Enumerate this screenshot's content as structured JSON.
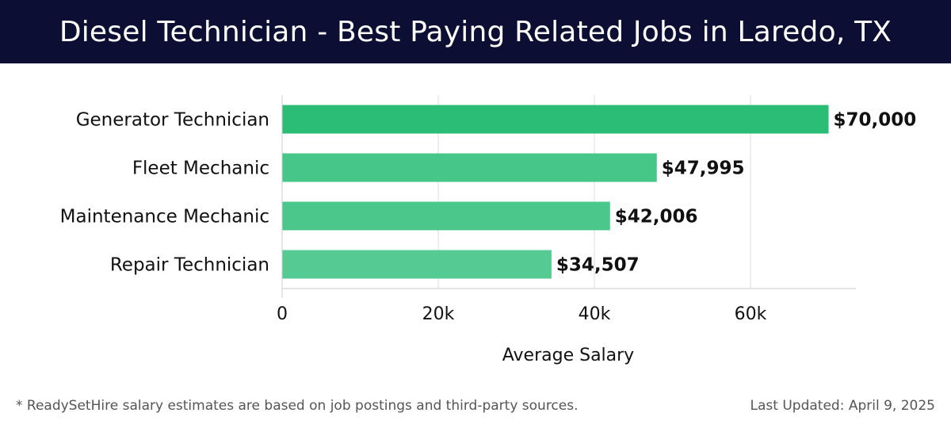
{
  "header": {
    "title": "Diesel Technician - Best Paying Related Jobs in Laredo, TX"
  },
  "chart_data": {
    "type": "bar",
    "orientation": "horizontal",
    "categories": [
      "Generator Technician",
      "Fleet Mechanic",
      "Maintenance Mechanic",
      "Repair Technician"
    ],
    "values": [
      70000,
      47995,
      42006,
      34507
    ],
    "value_labels": [
      "$70,000",
      "$47,995",
      "$42,006",
      "$34,507"
    ],
    "xlabel": "Average Salary",
    "ylabel": "",
    "xlim": [
      0,
      73500
    ],
    "xticks": [
      0,
      20000,
      40000,
      60000
    ],
    "xtick_labels": [
      "0",
      "20k",
      "40k",
      "60k"
    ],
    "grid": "vertical",
    "bar_colors": [
      "#2bbd76",
      "#47c68a",
      "#4cc78c",
      "#55cb93"
    ]
  },
  "footer": {
    "note": "* ReadySetHire salary estimates are based on job postings and third-party sources.",
    "updated": "Last Updated: April 9, 2025"
  }
}
